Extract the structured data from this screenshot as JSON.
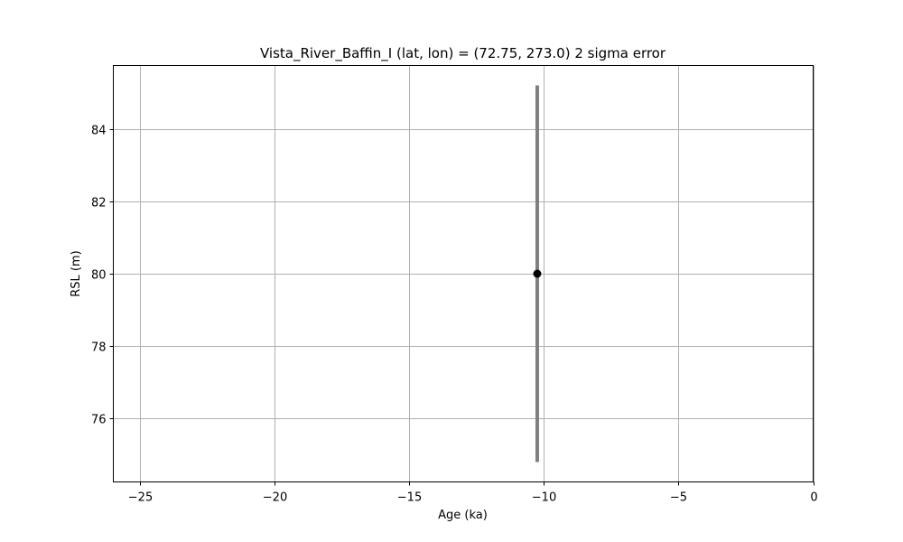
{
  "chart_data": {
    "type": "scatter",
    "title": "Vista_River_Baffin_I (lat, lon) = (72.75, 273.0)  2 sigma error",
    "xlabel": "Age (ka)",
    "ylabel": "RSL (m)",
    "xlim": [
      -26,
      0
    ],
    "ylim": [
      74.25,
      85.75
    ],
    "xticks": [
      -25,
      -20,
      -15,
      -10,
      -5,
      0
    ],
    "xtick_labels": [
      "−25",
      "−20",
      "−15",
      "−10",
      "−5",
      "0"
    ],
    "yticks": [
      76,
      78,
      80,
      82,
      84
    ],
    "ytick_labels": [
      "76",
      "78",
      "80",
      "82",
      "84"
    ],
    "grid": true,
    "legend": "none",
    "series": [
      {
        "points": [
          {
            "x": -10.25,
            "y": 80.0,
            "y_err_low": 74.8,
            "y_err_high": 85.2
          }
        ],
        "marker_color": "#000000",
        "errorbar_color": "#808080"
      }
    ]
  }
}
